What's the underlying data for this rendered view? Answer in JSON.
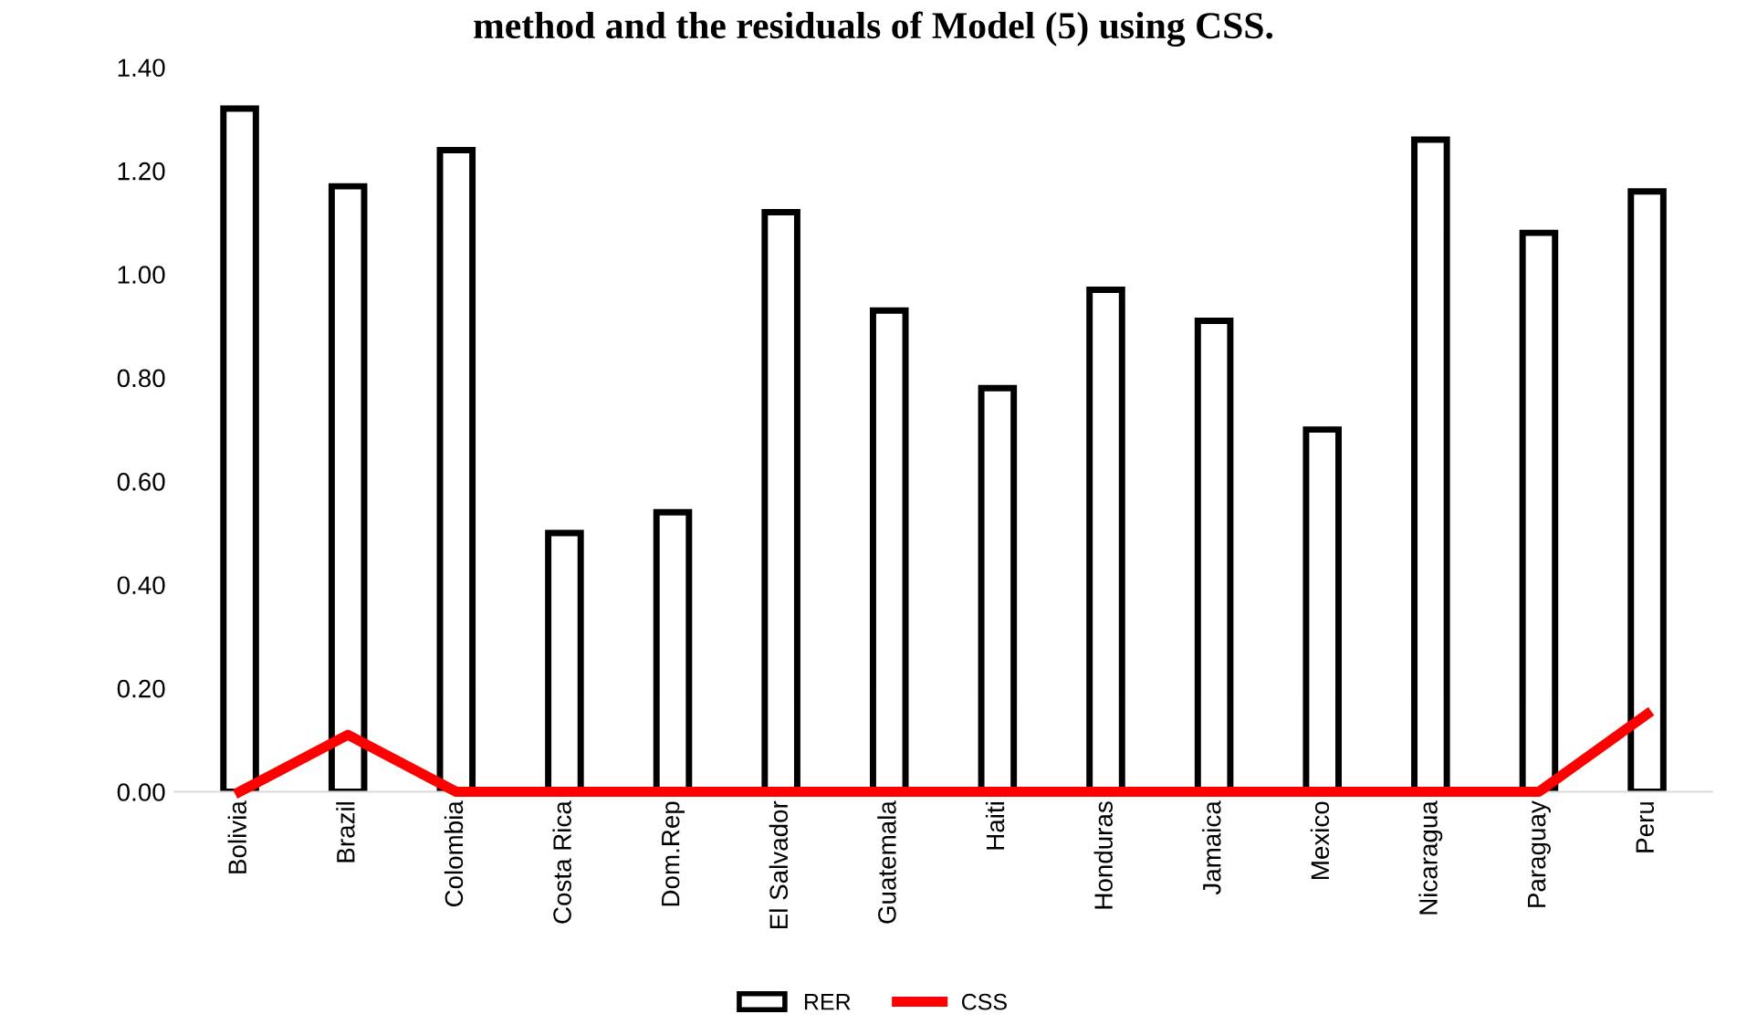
{
  "chart_data": {
    "type": "bar",
    "title": "method and the residuals of Model (5) using CSS.",
    "categories": [
      "Bolivia",
      "Brazil",
      "Colombia",
      "Costa Rica",
      "Dom.Rep",
      "El Salvador",
      "Guatemala",
      "Haiti",
      "Honduras",
      "Jamaica",
      "Mexico",
      "Nicaragua",
      "Paraguay",
      "Peru"
    ],
    "series": [
      {
        "name": "RER",
        "color": "#ffffff",
        "values": [
          1.32,
          1.17,
          1.24,
          0.5,
          0.54,
          1.12,
          0.93,
          0.78,
          0.97,
          0.91,
          0.7,
          1.26,
          1.08,
          1.16
        ]
      },
      {
        "name": "CSS",
        "type": "line",
        "color": "#ff0000",
        "values": [
          0.0,
          0.11,
          0.0,
          0.0,
          0.0,
          0.0,
          0.0,
          0.0,
          0.0,
          0.0,
          0.0,
          0.0,
          0.0,
          0.15
        ]
      }
    ],
    "ylim": [
      0,
      1.4
    ],
    "yticks": [
      {
        "value": 0,
        "label": "0.00"
      },
      {
        "value": 0.2,
        "label": "0.20"
      },
      {
        "value": 0.4,
        "label": "0.40"
      },
      {
        "value": 0.6,
        "label": "0.60"
      },
      {
        "value": 0.8,
        "label": "0.80"
      },
      {
        "value": 1.0,
        "label": "1.00"
      },
      {
        "value": 1.2,
        "label": "1.20"
      },
      {
        "value": 1.4,
        "label": "1.40"
      }
    ],
    "grid": false,
    "legend": "bottom"
  }
}
